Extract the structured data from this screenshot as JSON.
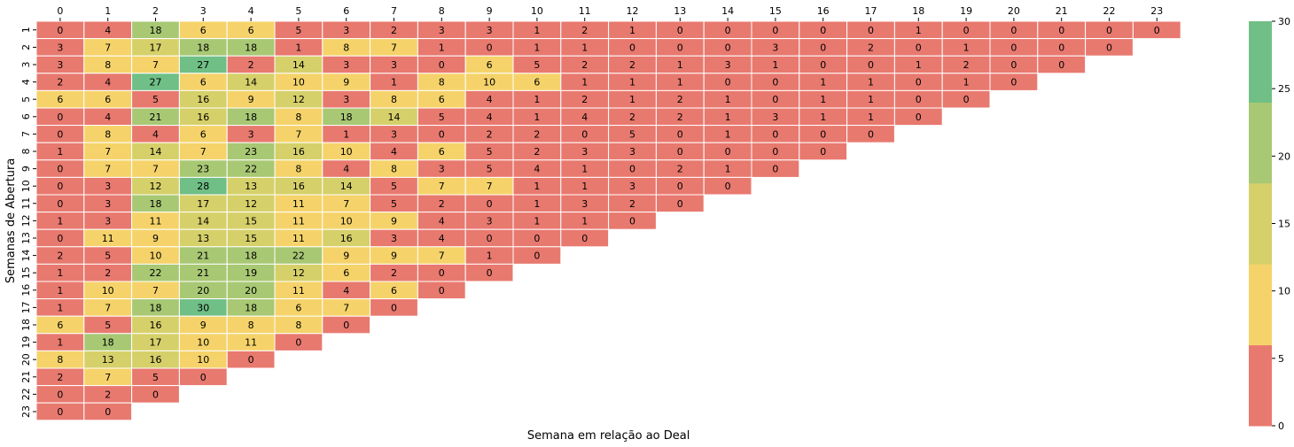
{
  "chart_data": {
    "type": "heatmap",
    "title": "",
    "xlabel": "Semana em relação ao Deal",
    "ylabel": "Semanas de Abertura",
    "x_tick_position": "top",
    "x_categories": [
      "0",
      "1",
      "2",
      "3",
      "4",
      "5",
      "6",
      "7",
      "8",
      "9",
      "10",
      "11",
      "12",
      "13",
      "14",
      "15",
      "16",
      "17",
      "18",
      "19",
      "20",
      "21",
      "22",
      "23"
    ],
    "y_categories": [
      "1",
      "2",
      "3",
      "4",
      "5",
      "6",
      "7",
      "8",
      "9",
      "10",
      "11",
      "12",
      "13",
      "14",
      "15",
      "16",
      "17",
      "18",
      "19",
      "20",
      "21",
      "22",
      "23"
    ],
    "values": [
      [
        0,
        4,
        18,
        6,
        6,
        5,
        3,
        2,
        3,
        3,
        1,
        2,
        1,
        0,
        0,
        0,
        0,
        0,
        1,
        0,
        0,
        0,
        0,
        0
      ],
      [
        3,
        7,
        17,
        18,
        18,
        1,
        8,
        7,
        1,
        0,
        1,
        1,
        0,
        0,
        0,
        3,
        0,
        2,
        0,
        1,
        0,
        0,
        0
      ],
      [
        3,
        8,
        7,
        27,
        2,
        14,
        3,
        3,
        0,
        6,
        5,
        2,
        2,
        1,
        3,
        1,
        0,
        0,
        1,
        2,
        0,
        0
      ],
      [
        2,
        4,
        27,
        6,
        14,
        10,
        9,
        1,
        8,
        10,
        6,
        1,
        1,
        1,
        0,
        0,
        1,
        1,
        0,
        1,
        0
      ],
      [
        6,
        6,
        5,
        16,
        9,
        12,
        3,
        8,
        6,
        4,
        1,
        2,
        1,
        2,
        1,
        0,
        1,
        1,
        0,
        0
      ],
      [
        0,
        4,
        21,
        16,
        18,
        8,
        18,
        14,
        5,
        4,
        1,
        4,
        2,
        2,
        1,
        3,
        1,
        1,
        0
      ],
      [
        0,
        8,
        4,
        6,
        3,
        7,
        1,
        3,
        0,
        2,
        2,
        0,
        5,
        0,
        1,
        0,
        0,
        0
      ],
      [
        1,
        7,
        14,
        7,
        23,
        16,
        10,
        4,
        6,
        5,
        2,
        3,
        3,
        0,
        0,
        0,
        0
      ],
      [
        0,
        7,
        7,
        23,
        22,
        8,
        4,
        8,
        3,
        5,
        4,
        1,
        0,
        2,
        1,
        0
      ],
      [
        0,
        3,
        12,
        28,
        13,
        16,
        14,
        5,
        7,
        7,
        1,
        1,
        3,
        0,
        0
      ],
      [
        0,
        3,
        18,
        17,
        12,
        11,
        7,
        5,
        2,
        0,
        1,
        3,
        2,
        0
      ],
      [
        1,
        3,
        11,
        14,
        15,
        11,
        10,
        9,
        4,
        3,
        1,
        1,
        0
      ],
      [
        0,
        11,
        9,
        13,
        15,
        11,
        16,
        3,
        4,
        0,
        0,
        0
      ],
      [
        2,
        5,
        10,
        21,
        18,
        22,
        9,
        9,
        7,
        1,
        0
      ],
      [
        1,
        2,
        22,
        21,
        19,
        12,
        6,
        2,
        0,
        0
      ],
      [
        1,
        10,
        7,
        20,
        20,
        11,
        4,
        6,
        0
      ],
      [
        1,
        7,
        18,
        30,
        18,
        6,
        7,
        0
      ],
      [
        6,
        5,
        16,
        9,
        8,
        8,
        0
      ],
      [
        1,
        18,
        17,
        10,
        11,
        0
      ],
      [
        8,
        13,
        16,
        10,
        0
      ],
      [
        2,
        7,
        5,
        0
      ],
      [
        0,
        2,
        0
      ],
      [
        0,
        0
      ]
    ],
    "colorbar": {
      "min": 0,
      "max": 30,
      "ticks": [
        "0",
        "5",
        "10",
        "15",
        "20",
        "25",
        "30"
      ],
      "colors": [
        "#e8796f",
        "#f5d36a",
        "#d6d06a",
        "#a8c874",
        "#6fbf86"
      ]
    },
    "grid": false
  }
}
